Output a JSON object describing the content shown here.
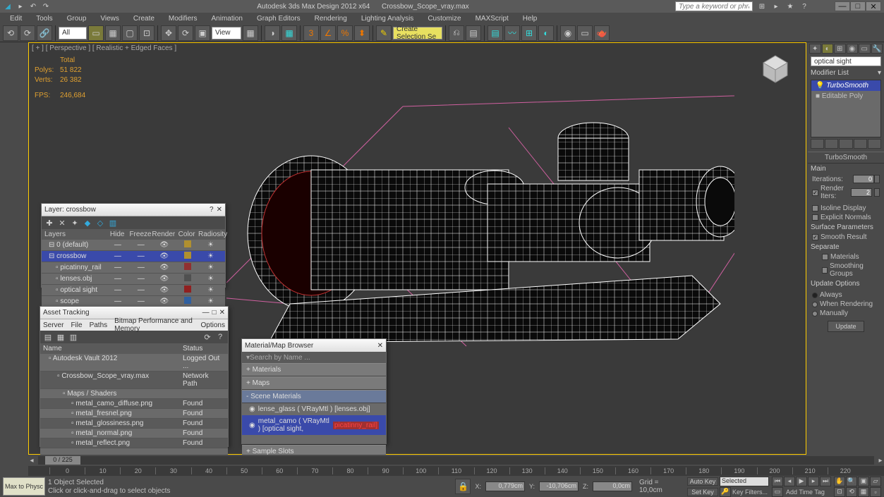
{
  "title": {
    "app": "Autodesk 3ds Max Design 2012 x64",
    "file": "Crossbow_Scope_vray.max",
    "search_ph": "Type a keyword or phrase"
  },
  "menu": [
    "Edit",
    "Tools",
    "Group",
    "Views",
    "Create",
    "Modifiers",
    "Animation",
    "Graph Editors",
    "Rendering",
    "Lighting Analysis",
    "Customize",
    "MAXScript",
    "Help"
  ],
  "toolbar": {
    "drop1": "All",
    "drop2": "View",
    "drop3": "Create Selection Se"
  },
  "viewport": {
    "label": "[ + ] [ Perspective ] [ Realistic + Edged Faces ]",
    "stats": {
      "head": "Total",
      "polys_l": "Polys:",
      "polys_v": "51 822",
      "verts_l": "Verts:",
      "verts_v": "26 382",
      "fps_l": "FPS:",
      "fps_v": "246,684"
    }
  },
  "cmd": {
    "obj_name": "optical sight",
    "mod_label": "Modifier List",
    "mods": {
      "turbo": "TurboSmooth",
      "epoly": "Editable Poly"
    },
    "roll1": "TurboSmooth",
    "main": "Main",
    "iter_l": "Iterations:",
    "iter_v": "0",
    "rit_l": "Render Iters:",
    "rit_v": "2",
    "iso": "Isoline Display",
    "expn": "Explicit Normals",
    "surf": "Surface Parameters",
    "smr": "Smooth Result",
    "sep": "Separate",
    "mat": "Materials",
    "smg": "Smoothing Groups",
    "upd": "Update Options",
    "alw": "Always",
    "whr": "When Rendering",
    "man": "Manually",
    "upd_btn": "Update"
  },
  "layers": {
    "title": "Layer: crossbow",
    "head": {
      "name": "Layers",
      "hide": "Hide",
      "freeze": "Freeze",
      "render": "Render",
      "color": "Color",
      "rad": "Radiosity"
    },
    "rows": [
      {
        "name": "0 (default)",
        "color": "#b09030"
      },
      {
        "name": "crossbow",
        "color": "#b09030",
        "sel": true
      },
      {
        "name": "picatinny_rail",
        "color": "#903030"
      },
      {
        "name": "lenses.obj",
        "color": "#505050"
      },
      {
        "name": "optical sight",
        "color": "#902020"
      },
      {
        "name": "scope",
        "color": "#3060a0"
      }
    ]
  },
  "assets": {
    "title": "Asset Tracking",
    "menus": [
      "Server",
      "File",
      "Paths",
      "Bitmap Performance and Memory",
      "Options"
    ],
    "head": {
      "name": "Name",
      "status": "Status"
    },
    "rows": [
      {
        "name": "Autodesk Vault 2012",
        "status": "Logged Out ...",
        "ind": 8
      },
      {
        "name": "Crossbow_Scope_vray.max",
        "status": "Network Path",
        "ind": 20
      },
      {
        "name": "Maps / Shaders",
        "status": "",
        "ind": 28
      },
      {
        "name": "metal_camo_diffuse.png",
        "status": "Found",
        "ind": 40
      },
      {
        "name": "metal_fresnel.png",
        "status": "Found",
        "ind": 40
      },
      {
        "name": "metal_glossiness.png",
        "status": "Found",
        "ind": 40
      },
      {
        "name": "metal_normal.png",
        "status": "Found",
        "ind": 40
      },
      {
        "name": "metal_reflect.png",
        "status": "Found",
        "ind": 40
      }
    ]
  },
  "matbrowser": {
    "title": "Material/Map Browser",
    "search": "Search by Name ...",
    "sects": {
      "mats": "Materials",
      "maps": "Maps",
      "scene": "Scene Materials",
      "slots": "Sample Slots"
    },
    "items": {
      "i1": "lense_glass ( VRayMtl ) [lenses.obj]",
      "i2a": "metal_camo ( VRayMtl ) [optical sight,",
      "i2b": "picatinny_rail]"
    }
  },
  "timeline": {
    "pos": "0 / 225",
    "ticks": [
      "0",
      "10",
      "20",
      "30",
      "40",
      "50",
      "60",
      "70",
      "80",
      "90",
      "100",
      "110",
      "120",
      "130",
      "140",
      "150",
      "160",
      "170",
      "180",
      "190",
      "200",
      "210",
      "220"
    ]
  },
  "status": {
    "maxphys": "Max to Physc",
    "sel": "1 Object Selected",
    "hint": "Click or click-and-drag to select objects",
    "x": "0,779cm",
    "y": "-10,706cm",
    "z": "0,0cm",
    "grid": "Grid = 10,0cm",
    "autokey": "Auto Key",
    "setkey": "Set Key",
    "drop": "Selected",
    "keyf": "Key Filters...",
    "addtag": "Add Time Tag"
  }
}
